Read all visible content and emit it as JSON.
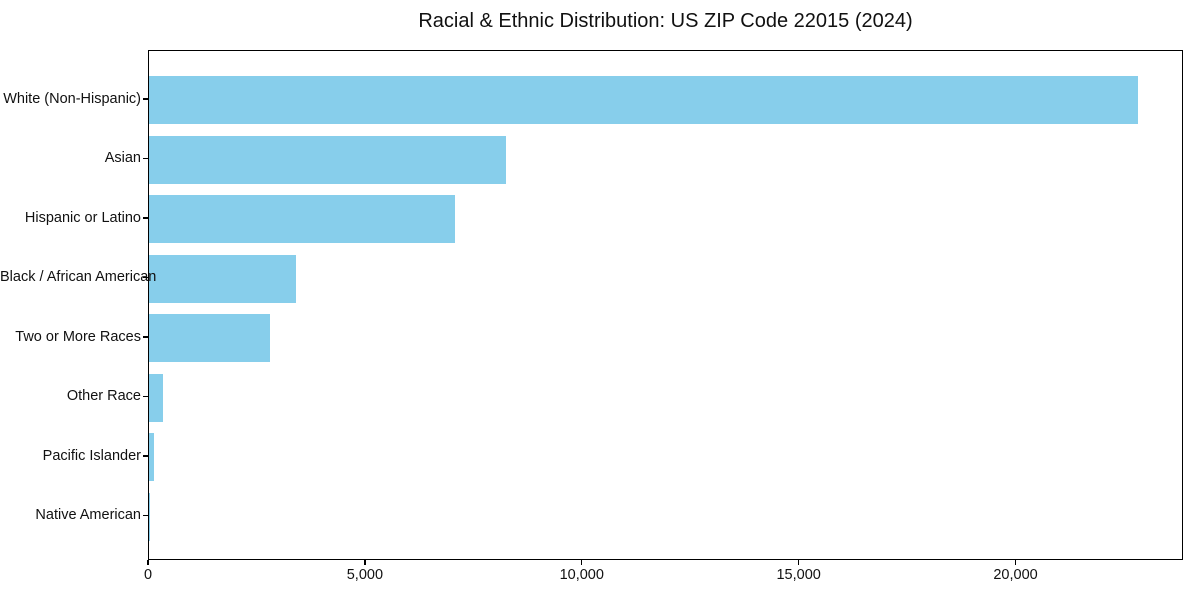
{
  "chart_data": {
    "type": "bar",
    "orientation": "horizontal",
    "title": "Racial & Ethnic Distribution: US ZIP Code 22015 (2024)",
    "categories": [
      "White (Non-Hispanic)",
      "Asian",
      "Hispanic or Latino",
      "Black / African American",
      "Two or More Races",
      "Other Race",
      "Pacific Islander",
      "Native American"
    ],
    "values": [
      22790,
      8220,
      7050,
      3380,
      2790,
      330,
      115,
      25
    ],
    "bar_color": "#87CEEB",
    "xlim": [
      0,
      23860
    ],
    "x_ticks": [
      0,
      5000,
      10000,
      15000,
      20000
    ],
    "x_tick_labels": [
      "0",
      "5,000",
      "10,000",
      "15,000",
      "20,000"
    ],
    "xlabel": "",
    "ylabel": "",
    "grid": false,
    "legend": null,
    "frame": "full-box"
  }
}
